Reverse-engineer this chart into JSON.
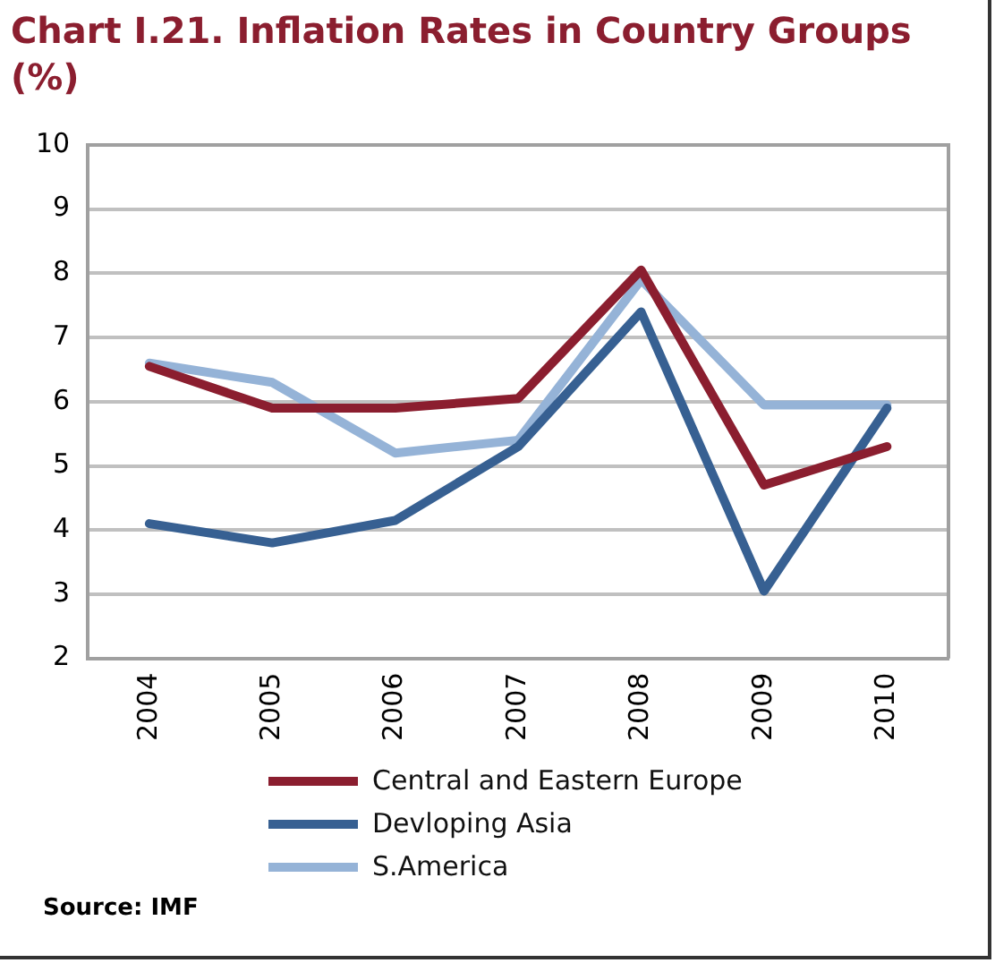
{
  "chart_data": {
    "type": "line",
    "title": "Chart I.21. Inflation Rates in Country Groups (%)",
    "categories": [
      "2004",
      "2005",
      "2006",
      "2007",
      "2008",
      "2009",
      "2010"
    ],
    "series": [
      {
        "name": "Central and Eastern Europe",
        "color": "#8b1e2f",
        "values": [
          6.55,
          5.9,
          5.9,
          6.05,
          8.05,
          4.7,
          5.3
        ]
      },
      {
        "name": "Devloping Asia",
        "color": "#376092",
        "values": [
          4.1,
          3.8,
          4.15,
          5.3,
          7.4,
          3.05,
          5.9
        ]
      },
      {
        "name": "S.America",
        "color": "#95b3d7",
        "values": [
          6.6,
          6.3,
          5.2,
          5.4,
          7.9,
          5.95,
          5.95
        ]
      }
    ],
    "ylim": [
      2,
      10
    ],
    "yticks": [
      2,
      3,
      4,
      5,
      6,
      7,
      8,
      9,
      10
    ],
    "grid": "y",
    "legend": "bottom",
    "marker": "none",
    "line_style": "solid",
    "annotations": [
      "Source: IMF"
    ]
  }
}
